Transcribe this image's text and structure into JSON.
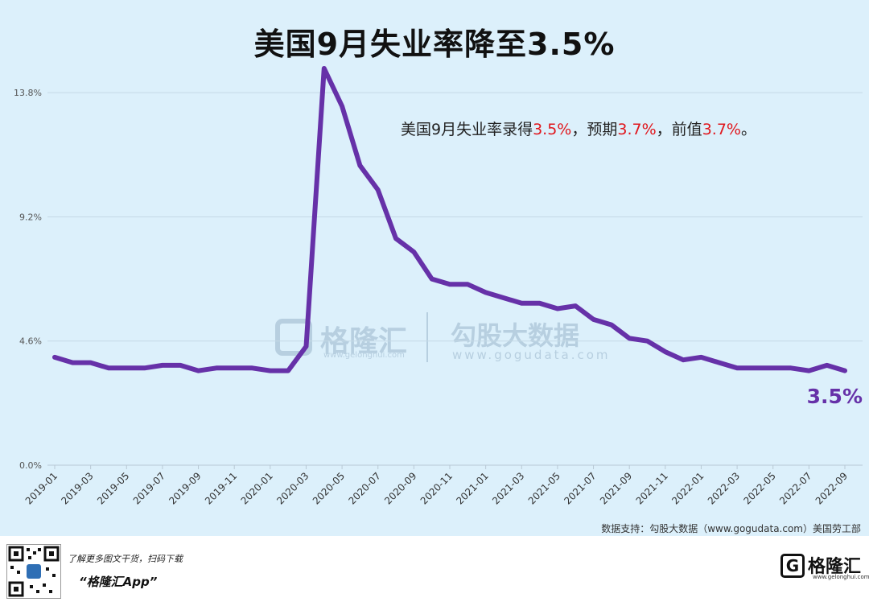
{
  "title": "美国9月失业率降至3.5%",
  "subtitle": {
    "prefix": "美国9月失业率录得",
    "actual": "3.5%",
    "mid1": "，预期",
    "expected": "3.7%",
    "mid2": "，前值",
    "previous": "3.7%",
    "suffix": "。"
  },
  "source": "数据支持：勾股大数据（www.gogudata.com）美国劳工部",
  "watermark": {
    "brand1": "格隆汇",
    "brand1_url": "www.gelonghui.com",
    "brand2": "勾股大数据",
    "brand2_url": "www.gogudata.com"
  },
  "footer": {
    "promo_line1": "了解更多图文干货，扫码下载",
    "promo_line2": "“格隆汇App”",
    "logo_mark": "G",
    "logo_text": "格隆汇",
    "logo_url": "www.gelonghui.com"
  },
  "colors": {
    "line": "#6631a8",
    "accent_red": "#e0161c",
    "background": "#dcf0fb",
    "grid": "#c5d9e6"
  },
  "chart_data": {
    "type": "line",
    "title": "美国9月失业率降至3.5%",
    "y_ticks": [
      "0.0%",
      "4.6%",
      "9.2%",
      "13.8%"
    ],
    "y_tick_values": [
      0,
      4.6,
      9.2,
      13.8
    ],
    "ylim": [
      0,
      14.7
    ],
    "x_ticks": [
      "2019-01",
      "2019-03",
      "2019-05",
      "2019-07",
      "2019-09",
      "2019-11",
      "2020-01",
      "2020-03",
      "2020-05",
      "2020-07",
      "2020-09",
      "2020-11",
      "2021-01",
      "2021-03",
      "2021-05",
      "2021-07",
      "2021-09",
      "2021-11",
      "2022-01",
      "2022-03",
      "2022-05",
      "2022-07",
      "2022-09"
    ],
    "x": [
      "2019-01",
      "2019-02",
      "2019-03",
      "2019-04",
      "2019-05",
      "2019-06",
      "2019-07",
      "2019-08",
      "2019-09",
      "2019-10",
      "2019-11",
      "2019-12",
      "2020-01",
      "2020-02",
      "2020-03",
      "2020-04",
      "2020-05",
      "2020-06",
      "2020-07",
      "2020-08",
      "2020-09",
      "2020-10",
      "2020-11",
      "2020-12",
      "2021-01",
      "2021-02",
      "2021-03",
      "2021-04",
      "2021-05",
      "2021-06",
      "2021-07",
      "2021-08",
      "2021-09",
      "2021-10",
      "2021-11",
      "2021-12",
      "2022-01",
      "2022-02",
      "2022-03",
      "2022-04",
      "2022-05",
      "2022-06",
      "2022-07",
      "2022-08",
      "2022-09"
    ],
    "series": [
      {
        "values": [
          4.0,
          3.8,
          3.8,
          3.6,
          3.6,
          3.6,
          3.7,
          3.7,
          3.5,
          3.6,
          3.6,
          3.6,
          3.5,
          3.5,
          4.4,
          14.7,
          13.3,
          11.1,
          10.2,
          8.4,
          7.9,
          6.9,
          6.7,
          6.7,
          6.4,
          6.2,
          6.0,
          6.0,
          5.8,
          5.9,
          5.4,
          5.2,
          4.7,
          4.6,
          4.2,
          3.9,
          4.0,
          3.8,
          3.6,
          3.6,
          3.6,
          3.6,
          3.5,
          3.7,
          3.5
        ]
      }
    ],
    "end_label": "3.5%",
    "grid": true
  }
}
